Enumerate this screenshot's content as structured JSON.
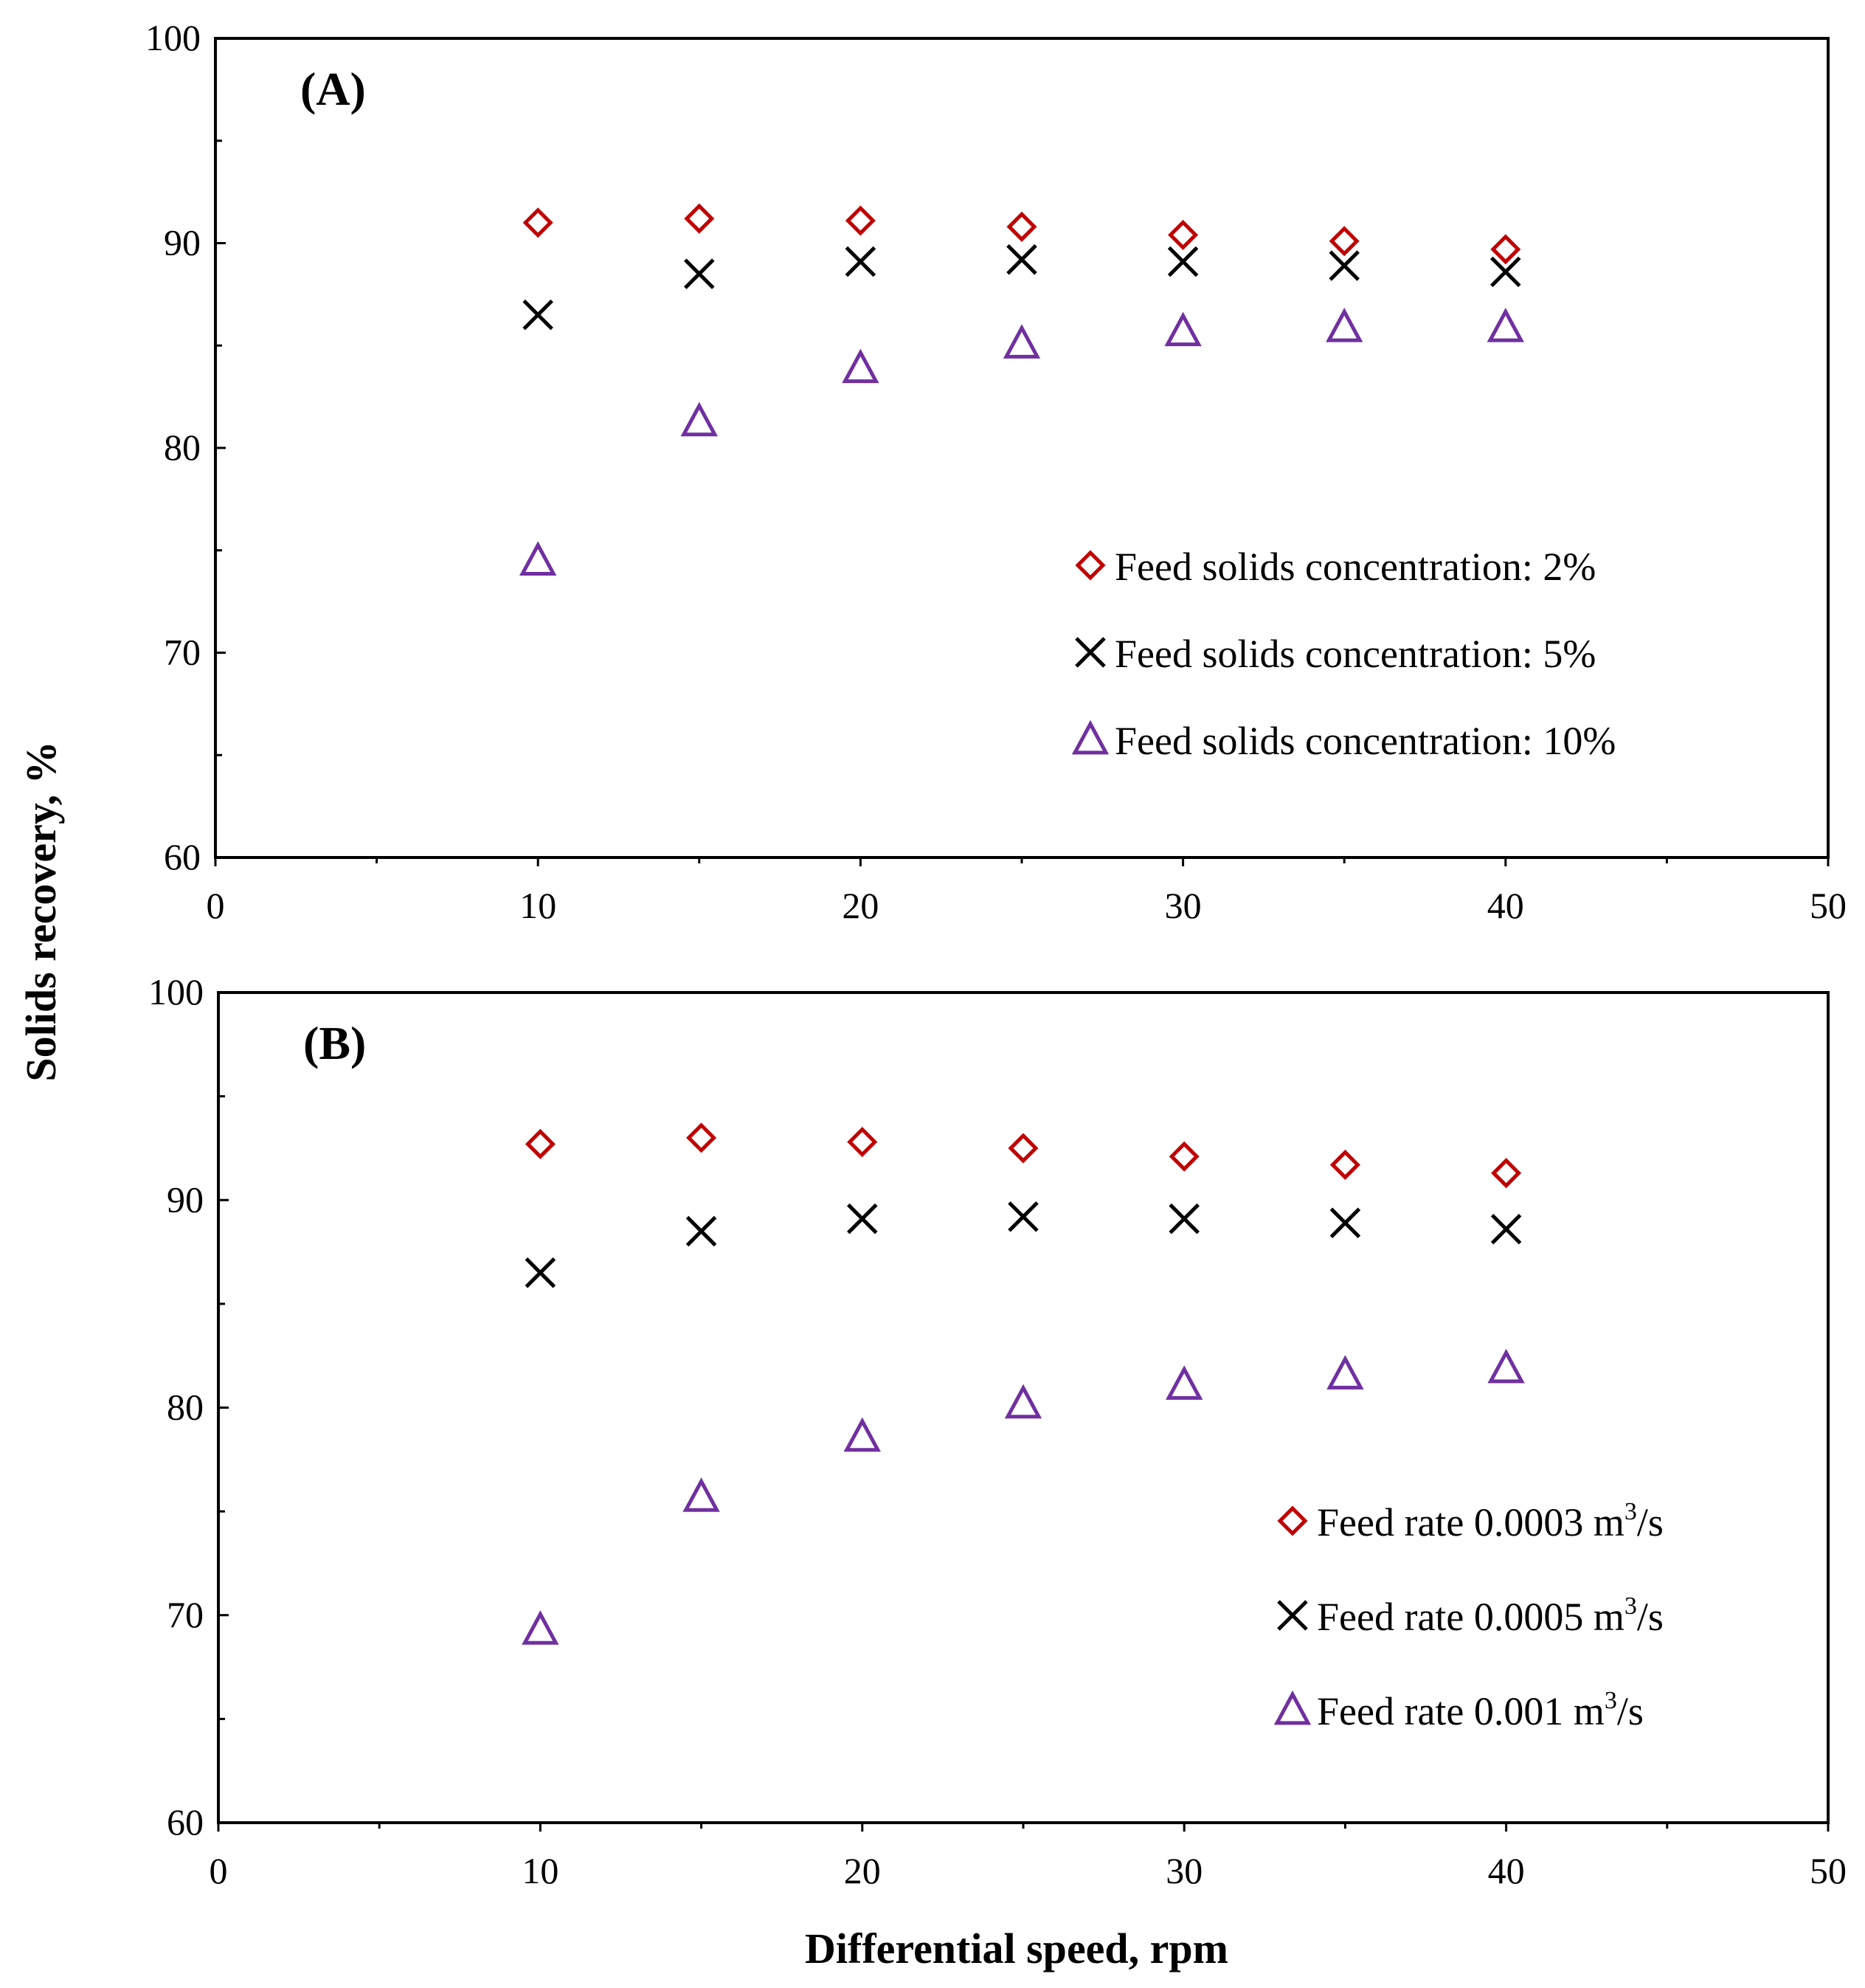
{
  "figure": {
    "ylabel": "Solids recovery, %",
    "xlabel": "Differential speed, rpm"
  },
  "chart_data": [
    {
      "type": "scatter",
      "panel_label": "(A)",
      "xlim": [
        0,
        50
      ],
      "ylim": [
        60,
        100
      ],
      "x_ticks": [
        "0",
        "10",
        "20",
        "30",
        "40",
        "50"
      ],
      "y_ticks": [
        "60",
        "70",
        "80",
        "90",
        "100"
      ],
      "legend_position": "right-middle",
      "x": [
        10,
        15,
        20,
        25,
        30,
        35,
        40
      ],
      "series": [
        {
          "name": "Feed solids concentration: 2%",
          "label_main": "Feed solids concentration: 2%",
          "label_unit": "",
          "label_sup": "",
          "label_tail": "",
          "marker": "diamond",
          "color": "#c00000",
          "values": [
            91.0,
            91.2,
            91.1,
            90.8,
            90.4,
            90.1,
            89.7
          ]
        },
        {
          "name": "Feed solids concentration: 5%",
          "label_main": "Feed solids concentration: 5%",
          "label_unit": "",
          "label_sup": "",
          "label_tail": "",
          "marker": "x",
          "color": "#000000",
          "values": [
            86.5,
            88.5,
            89.1,
            89.2,
            89.1,
            88.9,
            88.6
          ]
        },
        {
          "name": "Feed solids concentration: 10%",
          "label_main": "Feed solids concentration: 10%",
          "label_unit": "",
          "label_sup": "",
          "label_tail": "",
          "marker": "triangle",
          "color": "#7030a0",
          "values": [
            74.5,
            81.3,
            83.9,
            85.1,
            85.7,
            85.9,
            85.9
          ]
        }
      ]
    },
    {
      "type": "scatter",
      "panel_label": "(B)",
      "xlim": [
        0,
        50
      ],
      "ylim": [
        60,
        100
      ],
      "x_ticks": [
        "0",
        "10",
        "20",
        "30",
        "40",
        "50"
      ],
      "y_ticks": [
        "60",
        "70",
        "80",
        "90",
        "100"
      ],
      "legend_position": "bottom-right",
      "x": [
        10,
        15,
        20,
        25,
        30,
        35,
        40
      ],
      "series": [
        {
          "name": "Feed rate 0.0003 m³/s",
          "label_main": "Feed rate 0.0003",
          "label_unit": "m",
          "label_sup": "3",
          "label_tail": "/s",
          "marker": "diamond",
          "color": "#c00000",
          "values": [
            92.7,
            93.0,
            92.8,
            92.5,
            92.1,
            91.7,
            91.3
          ]
        },
        {
          "name": "Feed rate 0.0005 m³/s",
          "label_main": "Feed rate 0.0005",
          "label_unit": "m",
          "label_sup": "3",
          "label_tail": "/s",
          "marker": "x",
          "color": "#000000",
          "values": [
            86.5,
            88.5,
            89.1,
            89.2,
            89.1,
            88.9,
            88.6
          ]
        },
        {
          "name": "Feed rate 0.001 m³/s",
          "label_main": "Feed rate 0.001",
          "label_unit": "m",
          "label_sup": "3",
          "label_tail": "/s",
          "marker": "triangle",
          "color": "#7030a0",
          "values": [
            69.3,
            75.7,
            78.6,
            80.2,
            81.1,
            81.6,
            81.9
          ]
        }
      ]
    }
  ]
}
